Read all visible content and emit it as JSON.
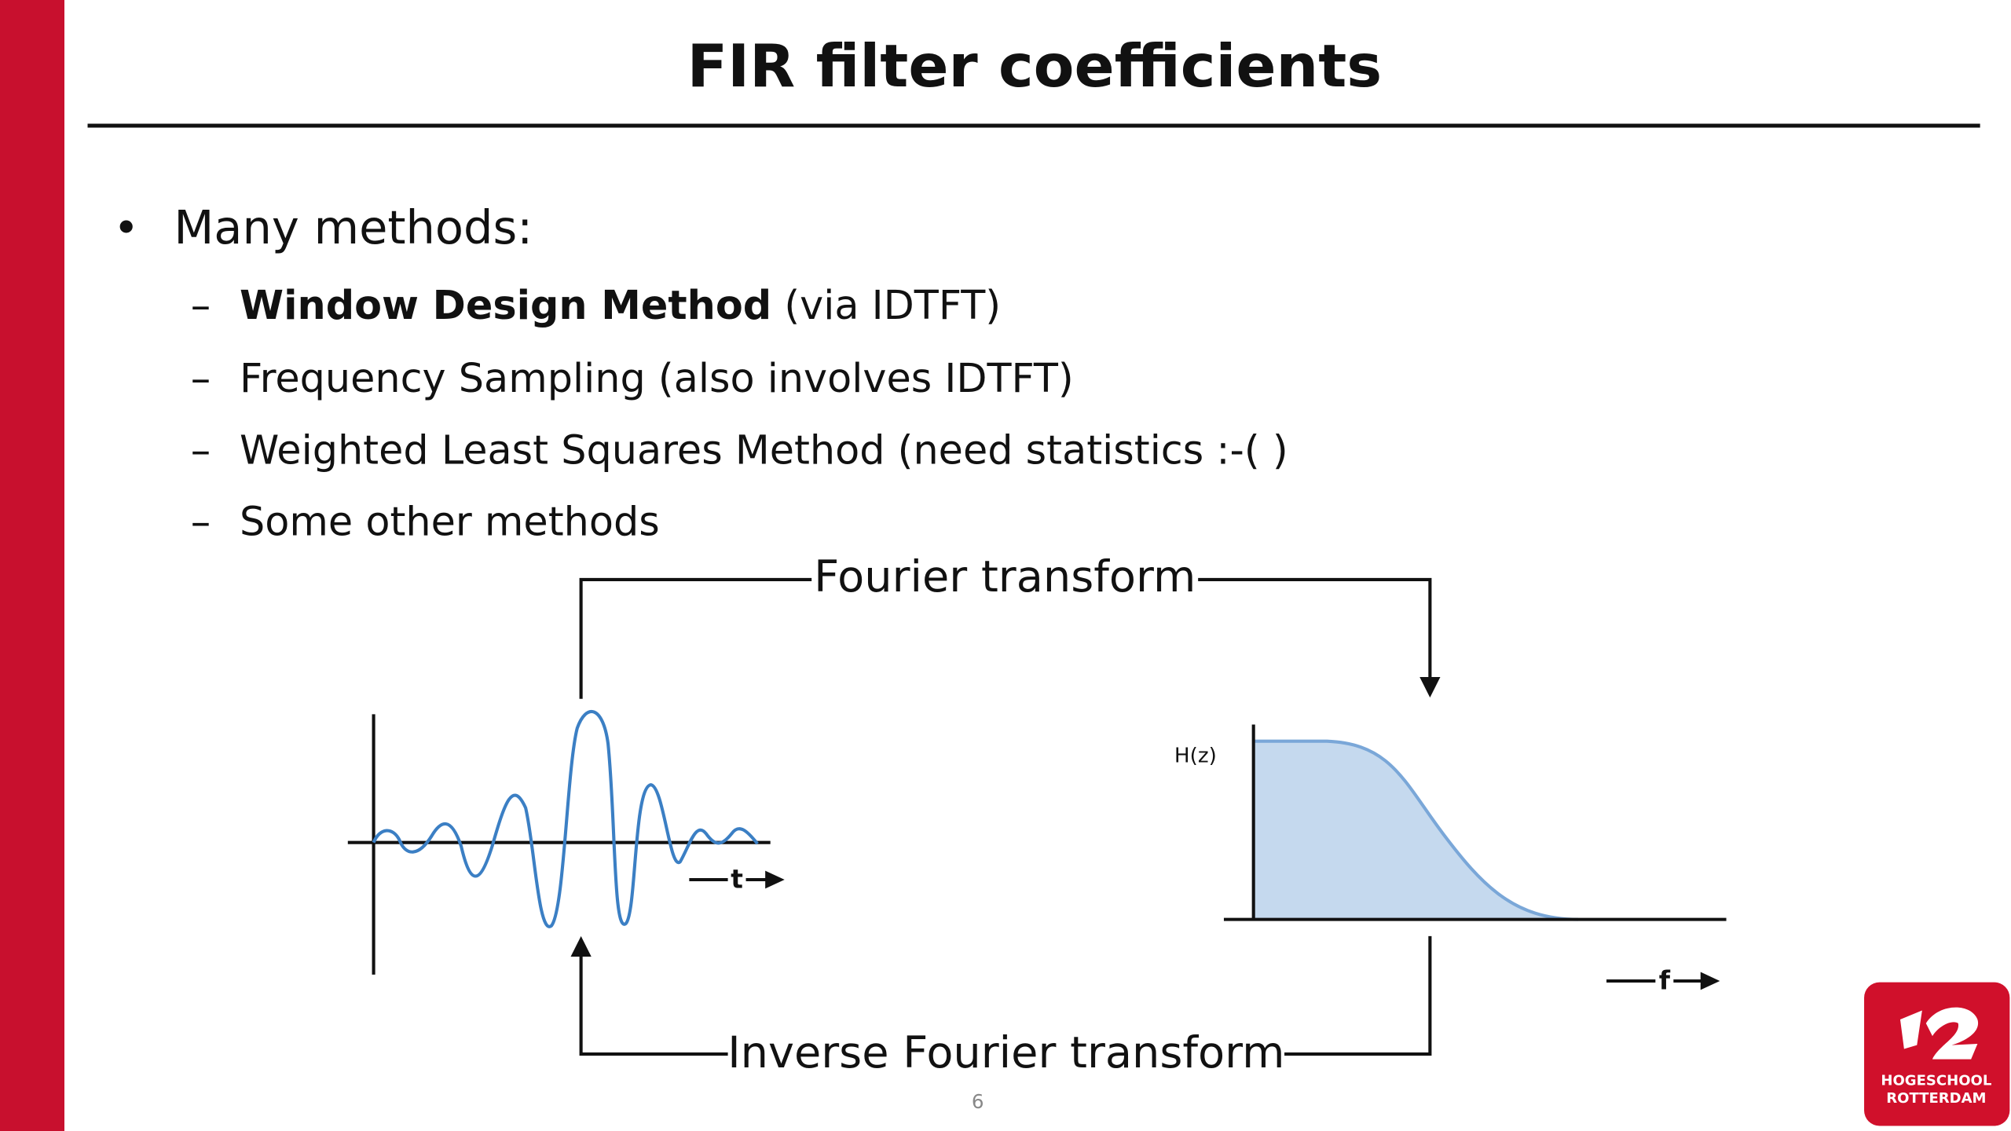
{
  "slide": {
    "title": "FIR filter coefficients",
    "bullet": "Many methods:",
    "items": [
      {
        "bold": "Window Design Method",
        "text": " (via IDTFT)"
      },
      {
        "text": "Frequency Sampling (also involves IDTFT)"
      },
      {
        "text": "Weighted Least Squares Method (need statistics :-( )"
      },
      {
        "text": "Some other methods"
      }
    ],
    "diagram": {
      "forward": "Fourier transform",
      "inverse": "Inverse Fourier transform",
      "time_axis": "t",
      "freq_axis": "f",
      "response": "H(z)"
    },
    "page_number": "6",
    "logo": {
      "line1": "HOGESCHOOL",
      "line2": "ROTTERDAM"
    }
  }
}
